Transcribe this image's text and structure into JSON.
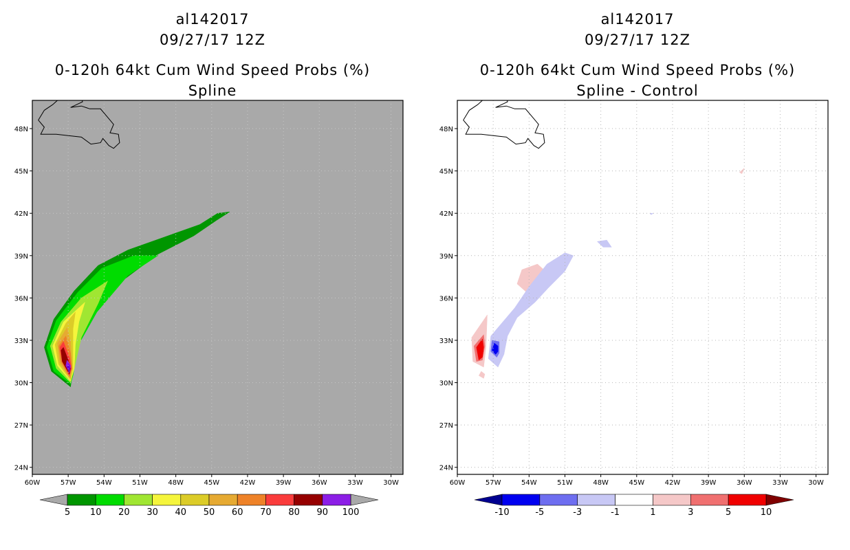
{
  "chart_data": [
    {
      "type": "filled-contour-map",
      "storm_id": "al142017",
      "datetime": "09/27/17 12Z",
      "title": "0-120h 64kt Cum Wind Speed Probs (%)",
      "subtitle": "Spline",
      "background": "#a9a9a9",
      "lon_range": [
        -60,
        -29
      ],
      "lat_range": [
        23.5,
        50
      ],
      "x_ticks": [
        "60W",
        "57W",
        "54W",
        "51W",
        "48W",
        "45W",
        "42W",
        "39W",
        "36W",
        "33W",
        "30W"
      ],
      "x_tick_values": [
        -60,
        -57,
        -54,
        -51,
        -48,
        -45,
        -42,
        -39,
        -36,
        -33,
        -30
      ],
      "y_ticks": [
        "24N",
        "27N",
        "30N",
        "33N",
        "36N",
        "39N",
        "42N",
        "45N",
        "48N"
      ],
      "y_tick_values": [
        24,
        27,
        30,
        33,
        36,
        39,
        42,
        45,
        48
      ],
      "legend_labels": [
        "5",
        "10",
        "20",
        "30",
        "40",
        "50",
        "60",
        "70",
        "80",
        "90",
        "100"
      ],
      "legend_colors": [
        "#009600",
        "#00dc00",
        "#a0e632",
        "#f5f53c",
        "#dccc28",
        "#e6aa32",
        "#ee8228",
        "#fa3c3c",
        "#960000",
        "#8c1ee6"
      ],
      "legend_end_colors": [
        "#a9a9a9",
        "#a9a9a9"
      ],
      "contours": [
        {
          "level": 5,
          "color": "#009600",
          "lonlat": [
            [
              -56.8,
              29.7
            ],
            [
              -58.4,
              30.8
            ],
            [
              -59.0,
              32.5
            ],
            [
              -58.2,
              34.5
            ],
            [
              -56.5,
              36.5
            ],
            [
              -54.5,
              38.3
            ],
            [
              -52.0,
              39.4
            ],
            [
              -49.0,
              40.3
            ],
            [
              -46.0,
              41.2
            ],
            [
              -44.5,
              42.0
            ],
            [
              -43.5,
              42.1
            ],
            [
              -44.6,
              41.5
            ],
            [
              -46.5,
              40.4
            ],
            [
              -49.5,
              39.1
            ],
            [
              -52.5,
              37.2
            ],
            [
              -55.0,
              34.6
            ],
            [
              -56.4,
              32.3
            ],
            [
              -56.7,
              30.4
            ]
          ]
        },
        {
          "level": 10,
          "color": "#00dc00",
          "lonlat": [
            [
              -56.8,
              29.9
            ],
            [
              -58.2,
              30.8
            ],
            [
              -58.8,
              32.5
            ],
            [
              -58.0,
              34.4
            ],
            [
              -56.2,
              36.4
            ],
            [
              -54.2,
              38.1
            ],
            [
              -51.5,
              39.0
            ],
            [
              -49.5,
              39.0
            ],
            [
              -52.0,
              37.6
            ],
            [
              -54.6,
              35.0
            ],
            [
              -56.2,
              32.6
            ],
            [
              -56.6,
              30.5
            ]
          ]
        },
        {
          "level": 20,
          "color": "#a0e632",
          "lonlat": [
            [
              -56.8,
              30.0
            ],
            [
              -58.0,
              31.0
            ],
            [
              -58.5,
              32.6
            ],
            [
              -57.6,
              34.3
            ],
            [
              -55.9,
              36.0
            ],
            [
              -53.7,
              37.2
            ],
            [
              -54.5,
              35.6
            ],
            [
              -55.9,
              33.2
            ],
            [
              -56.5,
              31.0
            ]
          ]
        },
        {
          "level": 30,
          "color": "#f5f53c",
          "lonlat": [
            [
              -56.8,
              30.1
            ],
            [
              -57.9,
              31.2
            ],
            [
              -58.3,
              32.6
            ],
            [
              -57.4,
              34.3
            ],
            [
              -55.6,
              35.7
            ],
            [
              -56.1,
              34.3
            ],
            [
              -56.4,
              32.7
            ],
            [
              -56.5,
              31.0
            ]
          ]
        },
        {
          "level": 40,
          "color": "#dccc28",
          "lonlat": [
            [
              -56.8,
              30.2
            ],
            [
              -57.8,
              31.3
            ],
            [
              -58.1,
              32.7
            ],
            [
              -57.2,
              34.2
            ],
            [
              -56.4,
              35.0
            ],
            [
              -56.6,
              33.8
            ],
            [
              -56.6,
              32.2
            ],
            [
              -56.6,
              31.0
            ]
          ]
        },
        {
          "level": 50,
          "color": "#e6aa32",
          "lonlat": [
            [
              -56.8,
              30.3
            ],
            [
              -57.7,
              31.4
            ],
            [
              -57.9,
              32.8
            ],
            [
              -57.1,
              33.9
            ],
            [
              -56.8,
              32.9
            ],
            [
              -56.7,
              31.5
            ]
          ]
        },
        {
          "level": 60,
          "color": "#ee8228",
          "lonlat": [
            [
              -56.9,
              30.4
            ],
            [
              -57.6,
              31.5
            ],
            [
              -57.8,
              32.6
            ],
            [
              -57.2,
              33.3
            ],
            [
              -56.8,
              32.1
            ],
            [
              -56.7,
              31.2
            ]
          ]
        },
        {
          "level": 70,
          "color": "#fa3c3c",
          "lonlat": [
            [
              -56.9,
              30.5
            ],
            [
              -57.5,
              31.5
            ],
            [
              -57.7,
              32.5
            ],
            [
              -57.4,
              32.9
            ],
            [
              -56.9,
              31.8
            ],
            [
              -56.7,
              31.0
            ]
          ]
        },
        {
          "level": 80,
          "color": "#960000",
          "lonlat": [
            [
              -56.9,
              30.6
            ],
            [
              -57.5,
              31.5
            ],
            [
              -57.6,
              32.3
            ],
            [
              -57.4,
              32.5
            ],
            [
              -57.0,
              31.6
            ],
            [
              -56.8,
              31.0
            ]
          ]
        },
        {
          "level": 90,
          "color": "#8c1ee6",
          "lonlat": [
            [
              -56.9,
              30.7
            ],
            [
              -57.2,
              31.2
            ],
            [
              -57.1,
              31.6
            ],
            [
              -56.8,
              31.2
            ]
          ]
        },
        {
          "level": 100,
          "color": "#6a00d0",
          "lonlat": [
            [
              -56.95,
              30.8
            ],
            [
              -57.1,
              31.1
            ],
            [
              -56.95,
              31.3
            ],
            [
              -56.85,
              31.0
            ]
          ]
        }
      ]
    },
    {
      "type": "filled-contour-map",
      "storm_id": "al142017",
      "datetime": "09/27/17 12Z",
      "title": "0-120h 64kt Cum Wind Speed Probs (%)",
      "subtitle": "Spline - Control",
      "background": "#ffffff",
      "lon_range": [
        -60,
        -29
      ],
      "lat_range": [
        23.5,
        50
      ],
      "x_ticks": [
        "60W",
        "57W",
        "54W",
        "51W",
        "48W",
        "45W",
        "42W",
        "39W",
        "36W",
        "33W",
        "30W"
      ],
      "x_tick_values": [
        -60,
        -57,
        -54,
        -51,
        -48,
        -45,
        -42,
        -39,
        -36,
        -33,
        -30
      ],
      "y_ticks": [
        "24N",
        "27N",
        "30N",
        "33N",
        "36N",
        "39N",
        "42N",
        "45N",
        "48N"
      ],
      "y_tick_values": [
        24,
        27,
        30,
        33,
        36,
        39,
        42,
        45,
        48
      ],
      "legend_labels": [
        "-10",
        "-5",
        "-3",
        "-1",
        "1",
        "3",
        "5",
        "10"
      ],
      "legend_colors": [
        "#0000f0",
        "#6e6ef0",
        "#c8c8f5",
        "#ffffff",
        "#f5c8c8",
        "#f07070",
        "#f00000"
      ],
      "legend_end_colors": [
        "#000090",
        "#800000"
      ],
      "contours": [
        {
          "level": 1,
          "color": "#f5c8c8",
          "lonlat": [
            [
              -57.5,
              34.8
            ],
            [
              -58.8,
              33.2
            ],
            [
              -58.7,
              31.5
            ],
            [
              -57.8,
              31.1
            ],
            [
              -57.6,
              32.5
            ]
          ]
        },
        {
          "level": 3,
          "color": "#f07070",
          "lonlat": [
            [
              -57.8,
              33.4
            ],
            [
              -58.6,
              32.6
            ],
            [
              -58.4,
              31.5
            ],
            [
              -57.9,
              31.6
            ],
            [
              -57.7,
              32.6
            ]
          ]
        },
        {
          "level": 5,
          "color": "#f00000",
          "lonlat": [
            [
              -57.9,
              33.1
            ],
            [
              -58.4,
              32.5
            ],
            [
              -58.2,
              31.6
            ],
            [
              -57.9,
              31.8
            ],
            [
              -57.8,
              32.5
            ]
          ]
        },
        {
          "level": 1,
          "color": "#f5c8c8",
          "lonlat": [
            [
              -58.0,
              30.8
            ],
            [
              -58.2,
              30.5
            ],
            [
              -57.8,
              30.3
            ],
            [
              -57.7,
              30.6
            ]
          ]
        },
        {
          "level": 1,
          "color": "#f5c8c8",
          "lonlat": [
            [
              -54.2,
              36.4
            ],
            [
              -55.0,
              37.0
            ],
            [
              -54.6,
              38.0
            ],
            [
              -53.3,
              38.4
            ],
            [
              -52.5,
              37.8
            ],
            [
              -53.4,
              37.4
            ],
            [
              -53.8,
              36.5
            ]
          ]
        },
        {
          "level": 1,
          "color": "#f5c8c8",
          "lonlat": [
            [
              -36.0,
              45.2
            ],
            [
              -36.4,
              44.9
            ],
            [
              -36.2,
              44.8
            ]
          ]
        },
        {
          "level": -1,
          "color": "#c8c8f5",
          "lonlat": [
            [
              -56.6,
              31.1
            ],
            [
              -57.4,
              31.7
            ],
            [
              -57.2,
              33.3
            ],
            [
              -56.2,
              34.3
            ],
            [
              -55.2,
              35.3
            ],
            [
              -54.0,
              36.8
            ],
            [
              -52.5,
              38.4
            ],
            [
              -51.0,
              39.2
            ],
            [
              -50.3,
              39.0
            ],
            [
              -51.0,
              37.9
            ],
            [
              -52.4,
              36.7
            ],
            [
              -53.5,
              35.7
            ],
            [
              -55.0,
              34.6
            ],
            [
              -55.8,
              33.3
            ],
            [
              -56.1,
              32.0
            ]
          ]
        },
        {
          "level": -3,
          "color": "#6e6ef0",
          "lonlat": [
            [
              -56.7,
              31.8
            ],
            [
              -57.2,
              32.2
            ],
            [
              -57.1,
              33.0
            ],
            [
              -56.5,
              32.9
            ],
            [
              -56.5,
              32.1
            ]
          ]
        },
        {
          "level": -5,
          "color": "#0000f0",
          "lonlat": [
            [
              -56.8,
              32.0
            ],
            [
              -57.1,
              32.3
            ],
            [
              -56.9,
              32.8
            ],
            [
              -56.6,
              32.6
            ],
            [
              -56.6,
              32.2
            ]
          ]
        },
        {
          "level": -1,
          "color": "#c8c8f5",
          "lonlat": [
            [
              -47.5,
              40.1
            ],
            [
              -48.3,
              40.0
            ],
            [
              -47.8,
              39.6
            ],
            [
              -47.1,
              39.6
            ]
          ]
        },
        {
          "level": -1,
          "color": "#c8c8f5",
          "lonlat": [
            [
              -43.6,
              42.0
            ],
            [
              -43.9,
              42.0
            ],
            [
              -43.8,
              41.9
            ]
          ]
        }
      ]
    }
  ],
  "coast": [
    [
      -59.5,
      48.6
    ],
    [
      -59.0,
      49.3
    ],
    [
      -58.3,
      49.7
    ],
    [
      -57.9,
      50.0
    ],
    [
      -57.0,
      50.2
    ],
    [
      -55.9,
      50.3
    ],
    [
      -55.8,
      49.9
    ],
    [
      -56.8,
      49.5
    ],
    [
      -55.9,
      49.6
    ],
    [
      -55.2,
      49.4
    ],
    [
      -54.3,
      49.4
    ],
    [
      -53.6,
      48.7
    ],
    [
      -53.2,
      48.3
    ],
    [
      -53.5,
      47.7
    ],
    [
      -52.8,
      47.6
    ],
    [
      -52.7,
      47.0
    ],
    [
      -53.2,
      46.6
    ],
    [
      -53.6,
      46.8
    ],
    [
      -54.1,
      47.3
    ],
    [
      -54.3,
      47.0
    ],
    [
      -55.1,
      46.9
    ],
    [
      -55.9,
      47.4
    ],
    [
      -57.0,
      47.5
    ],
    [
      -58.0,
      47.6
    ],
    [
      -59.3,
      47.6
    ],
    [
      -59.0,
      48.1
    ],
    [
      -59.5,
      48.6
    ]
  ]
}
